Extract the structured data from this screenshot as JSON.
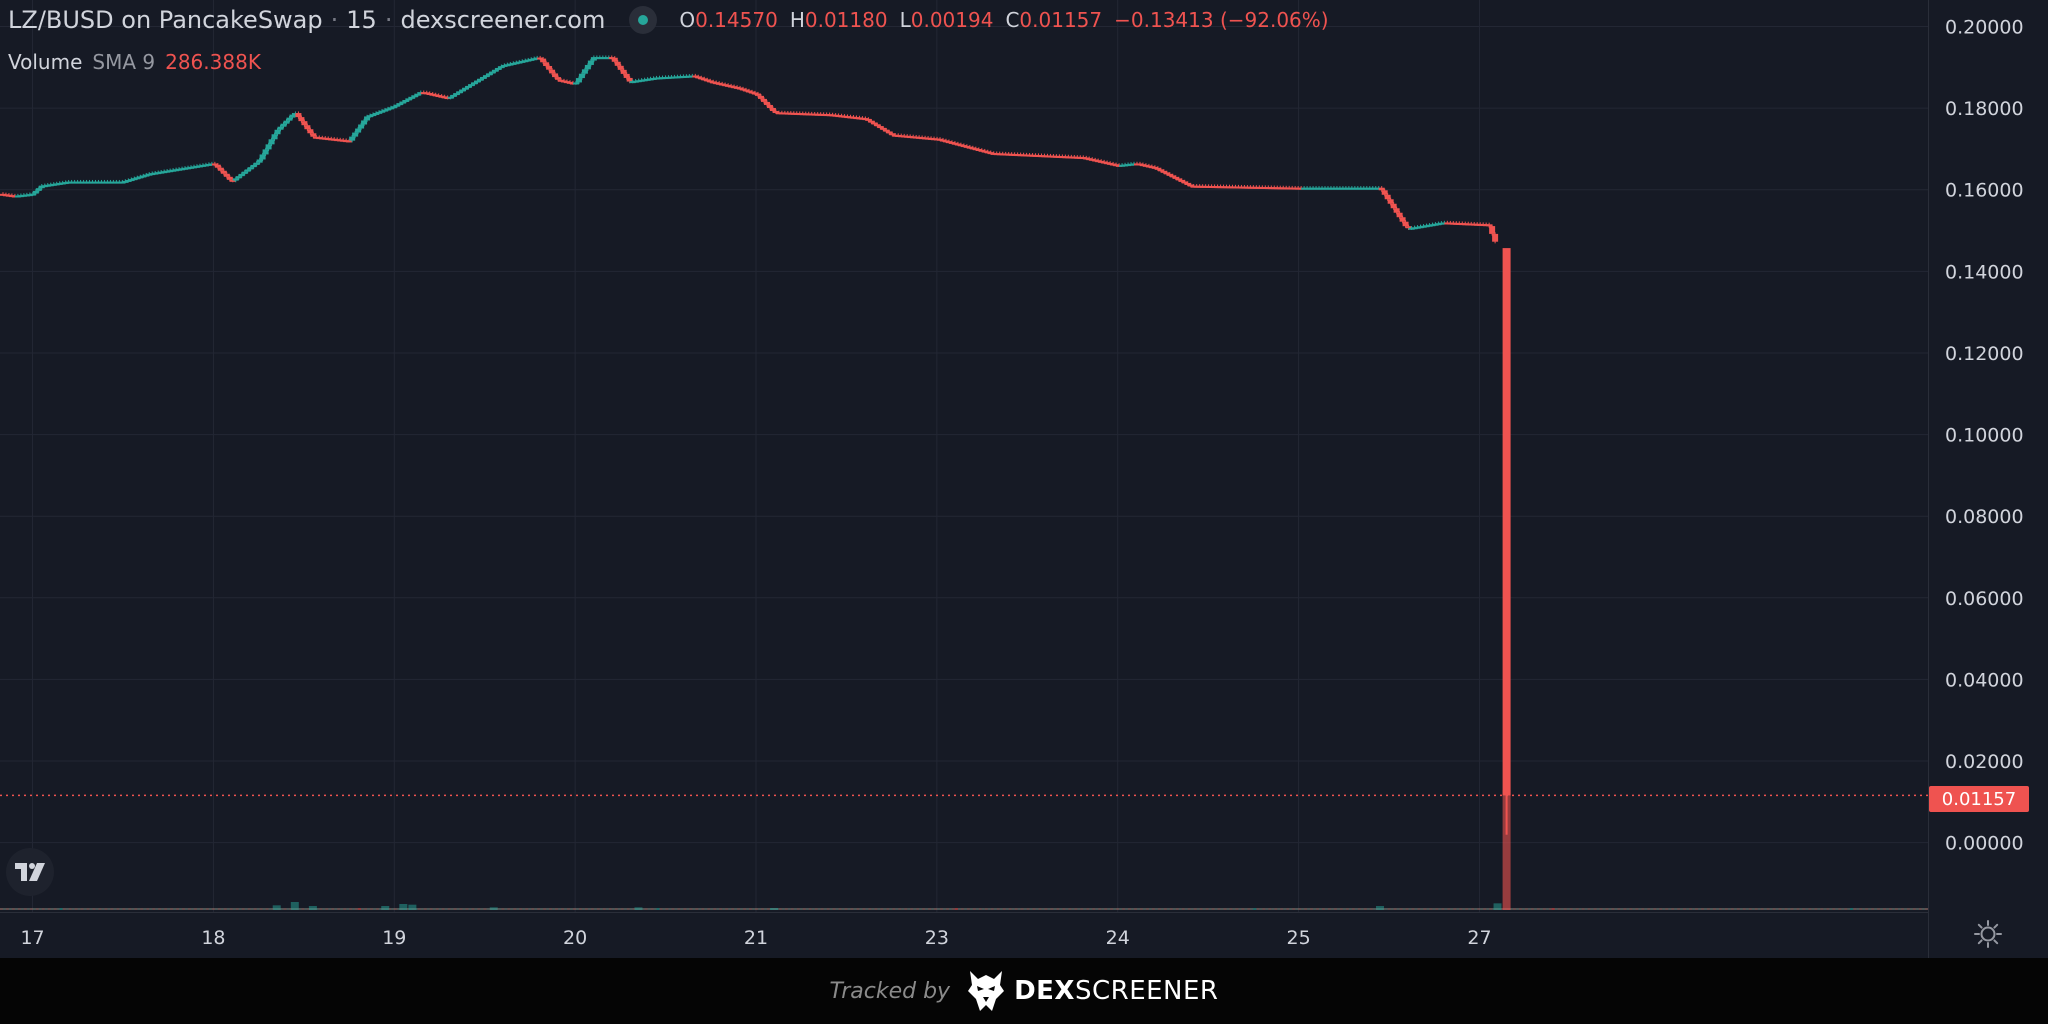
{
  "header": {
    "pair": "LZ/BUSD on PancakeSwap",
    "interval": "15",
    "source": "dexscreener.com",
    "status_color": "#26a69a",
    "ohlc": {
      "o_label": "O",
      "o": "0.14570",
      "h_label": "H",
      "h": "0.01180",
      "l_label": "L",
      "l": "0.00194",
      "c_label": "C",
      "c": "0.01157",
      "change": "−0.13413 (−92.06%)"
    }
  },
  "volume_legend": {
    "label": "Volume",
    "sma": "SMA 9",
    "value": "286.388K"
  },
  "last_price_label": "0.01157",
  "footer": {
    "tracked_by": "Tracked by",
    "brand_bold": "DEX",
    "brand_rest": "SCREENER"
  },
  "icons": {
    "tv_logo": "tradingview-logo-icon",
    "settings": "gear-icon",
    "brand": "dexscreener-eagle-icon"
  },
  "colors": {
    "up": "#26a69a",
    "down": "#ef5350",
    "background": "#161a25",
    "grid": "#232734"
  },
  "chart_data": {
    "type": "candlestick",
    "y_axis": {
      "min": -0.017,
      "max": 0.2065,
      "ticks": [
        "0.20000",
        "0.18000",
        "0.16000",
        "0.14000",
        "0.12000",
        "0.10000",
        "0.08000",
        "0.06000",
        "0.04000",
        "0.02000",
        "0.00000"
      ]
    },
    "x_axis": {
      "min_day": 16.82,
      "max_day": 27.48,
      "ticks": [
        {
          "label": "17",
          "day": 17.0
        },
        {
          "label": "18",
          "day": 18.0
        },
        {
          "label": "19",
          "day": 19.0
        },
        {
          "label": "20",
          "day": 20.0
        },
        {
          "label": "21",
          "day": 21.0
        },
        {
          "label": "23",
          "day": 22.0
        },
        {
          "label": "24",
          "day": 23.0
        },
        {
          "label": "25",
          "day": 24.0
        },
        {
          "label": "27",
          "day": 25.0
        }
      ]
    },
    "grid": true,
    "last_price": 0.01157,
    "last_candle": {
      "day": 25.15,
      "open": 0.1457,
      "high": 0.0118,
      "low": 0.00194,
      "close": 0.01157
    },
    "price_path": [
      [
        16.82,
        0.159
      ],
      [
        16.9,
        0.1585
      ],
      [
        17.0,
        0.159
      ],
      [
        17.05,
        0.161
      ],
      [
        17.2,
        0.162
      ],
      [
        17.5,
        0.162
      ],
      [
        17.65,
        0.164
      ],
      [
        18.0,
        0.1665
      ],
      [
        18.1,
        0.162
      ],
      [
        18.25,
        0.167
      ],
      [
        18.35,
        0.1745
      ],
      [
        18.45,
        0.179
      ],
      [
        18.55,
        0.173
      ],
      [
        18.75,
        0.172
      ],
      [
        18.85,
        0.178
      ],
      [
        19.0,
        0.1805
      ],
      [
        19.15,
        0.184
      ],
      [
        19.3,
        0.1825
      ],
      [
        19.45,
        0.1865
      ],
      [
        19.6,
        0.1905
      ],
      [
        19.8,
        0.1925
      ],
      [
        19.9,
        0.187
      ],
      [
        20.0,
        0.186
      ],
      [
        20.1,
        0.1925
      ],
      [
        20.2,
        0.1925
      ],
      [
        20.3,
        0.1865
      ],
      [
        20.45,
        0.1875
      ],
      [
        20.65,
        0.188
      ],
      [
        20.75,
        0.1865
      ],
      [
        20.9,
        0.185
      ],
      [
        21.0,
        0.1835
      ],
      [
        21.1,
        0.179
      ],
      [
        21.4,
        0.1785
      ],
      [
        21.6,
        0.1775
      ],
      [
        21.75,
        0.1735
      ],
      [
        22.0,
        0.1725
      ],
      [
        22.3,
        0.169
      ],
      [
        22.8,
        0.168
      ],
      [
        23.0,
        0.166
      ],
      [
        23.1,
        0.1665
      ],
      [
        23.2,
        0.1655
      ],
      [
        23.4,
        0.161
      ],
      [
        24.0,
        0.1605
      ],
      [
        24.45,
        0.1605
      ],
      [
        24.6,
        0.1505
      ],
      [
        24.8,
        0.152
      ],
      [
        25.05,
        0.1515
      ],
      [
        25.1,
        0.1457
      ]
    ],
    "volume": [
      {
        "day": 18.35,
        "value": 0.35
      },
      {
        "day": 18.45,
        "value": 0.6
      },
      {
        "day": 18.55,
        "value": 0.3
      },
      {
        "day": 18.95,
        "value": 0.3
      },
      {
        "day": 19.05,
        "value": 0.45
      },
      {
        "day": 19.1,
        "value": 0.4
      },
      {
        "day": 19.55,
        "value": 0.2
      },
      {
        "day": 20.35,
        "value": 0.2
      },
      {
        "day": 21.1,
        "value": 0.15
      },
      {
        "day": 24.45,
        "value": 0.3
      },
      {
        "day": 25.1,
        "value": 0.5
      },
      {
        "day": 25.15,
        "value": 9.0
      }
    ]
  }
}
